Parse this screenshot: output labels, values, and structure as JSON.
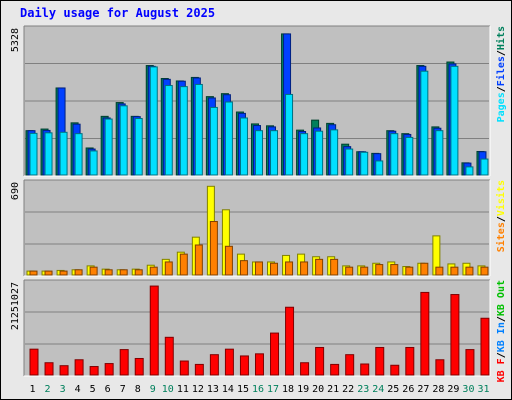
{
  "title": "Daily usage for August 2025",
  "colors": {
    "frame_bg": "#e8e8e8",
    "panel_bg": "#c0c0c0",
    "grid": "#808080",
    "hits": "#00805c",
    "files": "#0040ff",
    "pages": "#00e0ff",
    "visits": "#ffff00",
    "sites": "#ff8000",
    "kb_in": "#0080ff",
    "kb_out": "#00c000",
    "kb_f": "#ff0000",
    "weekend_day": "#00805c",
    "weekday_day": "#000000"
  },
  "chart_data": [
    {
      "type": "bar",
      "name": "hits-files-pages",
      "max_label": "5328",
      "ymax": 5328,
      "legend": [
        {
          "text": "Pages",
          "key": "pages"
        },
        {
          "text": "/",
          "key": "sep"
        },
        {
          "text": "Files",
          "key": "files"
        },
        {
          "text": "/",
          "key": "sep"
        },
        {
          "text": "Hits",
          "key": "hits"
        }
      ],
      "series": [
        {
          "name": "Hits",
          "color_key": "hits",
          "values": [
            1640,
            1700,
            3220,
            1930,
            1000,
            2170,
            2680,
            2170,
            4050,
            3570,
            3480,
            3610,
            2900,
            3010,
            2330,
            1890,
            1820,
            5220,
            1660,
            2030,
            1910,
            1140,
            860,
            800,
            1640,
            1530,
            4050,
            1780,
            4180,
            450,
            870
          ]
        },
        {
          "name": "Files",
          "color_key": "files",
          "values": [
            1640,
            1650,
            3220,
            1880,
            960,
            2110,
            2630,
            2160,
            4020,
            3540,
            3470,
            3590,
            2850,
            2970,
            2280,
            1830,
            1780,
            5220,
            1610,
            1740,
            1860,
            1050,
            860,
            790,
            1620,
            1500,
            4020,
            1730,
            4110,
            440,
            860
          ]
        },
        {
          "name": "Pages",
          "color_key": "pages",
          "values": [
            1540,
            1560,
            1580,
            1530,
            890,
            2070,
            2560,
            2090,
            4000,
            3310,
            3270,
            3350,
            2500,
            2700,
            2110,
            1640,
            1640,
            2980,
            1530,
            1620,
            1670,
            960,
            840,
            520,
            1530,
            1390,
            3840,
            1640,
            4020,
            300,
            590
          ]
        }
      ]
    },
    {
      "type": "bar",
      "name": "visits-sites",
      "max_label": "690",
      "ymax": 690,
      "legend": [
        {
          "text": "Sites",
          "key": "sites"
        },
        {
          "text": "/",
          "key": "sep"
        },
        {
          "text": "Visits",
          "key": "visits"
        }
      ],
      "series": [
        {
          "name": "Visits",
          "color_key": "visits",
          "values": [
            30,
            30,
            35,
            40,
            70,
            45,
            40,
            45,
            75,
            120,
            175,
            290,
            680,
            500,
            160,
            100,
            100,
            150,
            160,
            140,
            140,
            70,
            70,
            90,
            100,
            65,
            90,
            300,
            85,
            90,
            70
          ]
        },
        {
          "name": "Sites",
          "color_key": "sites",
          "values": [
            30,
            30,
            30,
            40,
            60,
            40,
            40,
            40,
            60,
            100,
            160,
            230,
            410,
            220,
            110,
            100,
            90,
            100,
            100,
            120,
            120,
            60,
            60,
            80,
            80,
            60,
            90,
            60,
            60,
            60,
            60
          ]
        }
      ]
    },
    {
      "type": "bar",
      "name": "kbytes",
      "max_label": "21251027",
      "ymax": 21251027,
      "legend": [
        {
          "text": "KB F",
          "key": "kb_f"
        },
        {
          "text": "/",
          "key": "sep"
        },
        {
          "text": "KB In",
          "key": "kb_in"
        },
        {
          "text": "/",
          "key": "sep"
        },
        {
          "text": "KB Out",
          "key": "kb_out"
        }
      ],
      "series": [
        {
          "name": "KB F",
          "color_key": "kb_f",
          "values": [
            6100000,
            2900000,
            2200000,
            3600000,
            2000000,
            2700000,
            6000000,
            3900000,
            21000000,
            8900000,
            3300000,
            2500000,
            4800000,
            6100000,
            4500000,
            5000000,
            9900000,
            16000000,
            2900000,
            6500000,
            2500000,
            4800000,
            2600000,
            6500000,
            2300000,
            6500000,
            19500000,
            3600000,
            19000000,
            6000000,
            13400000
          ]
        }
      ]
    }
  ],
  "days": [
    {
      "label": "1",
      "weekend": false
    },
    {
      "label": "2",
      "weekend": true
    },
    {
      "label": "3",
      "weekend": true
    },
    {
      "label": "4",
      "weekend": false
    },
    {
      "label": "5",
      "weekend": false
    },
    {
      "label": "6",
      "weekend": false
    },
    {
      "label": "7",
      "weekend": false
    },
    {
      "label": "8",
      "weekend": false
    },
    {
      "label": "9",
      "weekend": true
    },
    {
      "label": "10",
      "weekend": true
    },
    {
      "label": "11",
      "weekend": false
    },
    {
      "label": "12",
      "weekend": false
    },
    {
      "label": "13",
      "weekend": false
    },
    {
      "label": "14",
      "weekend": false
    },
    {
      "label": "15",
      "weekend": false
    },
    {
      "label": "16",
      "weekend": true
    },
    {
      "label": "17",
      "weekend": true
    },
    {
      "label": "18",
      "weekend": false
    },
    {
      "label": "19",
      "weekend": false
    },
    {
      "label": "20",
      "weekend": false
    },
    {
      "label": "21",
      "weekend": false
    },
    {
      "label": "22",
      "weekend": false
    },
    {
      "label": "23",
      "weekend": true
    },
    {
      "label": "24",
      "weekend": true
    },
    {
      "label": "25",
      "weekend": false
    },
    {
      "label": "26",
      "weekend": false
    },
    {
      "label": "27",
      "weekend": false
    },
    {
      "label": "28",
      "weekend": false
    },
    {
      "label": "29",
      "weekend": false
    },
    {
      "label": "30",
      "weekend": true
    },
    {
      "label": "31",
      "weekend": true
    }
  ]
}
